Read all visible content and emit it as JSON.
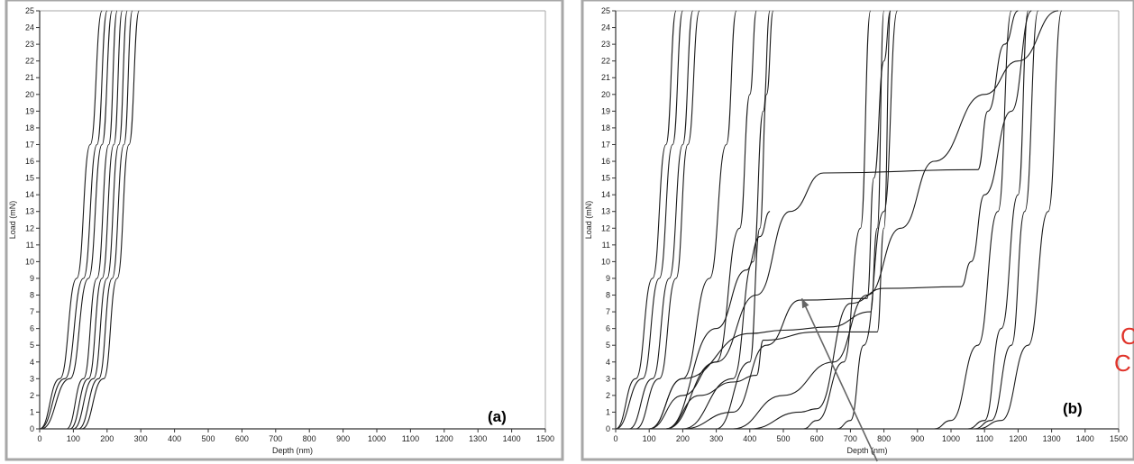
{
  "chart_data": [
    {
      "type": "line",
      "panel_label": "(a)",
      "xlabel": "Depth (nm)",
      "ylabel": "Load (mN)",
      "xlim": [
        0,
        1500
      ],
      "ylim": [
        0,
        25
      ],
      "x_ticks": [
        0,
        100,
        200,
        300,
        400,
        500,
        600,
        700,
        800,
        900,
        1000,
        1100,
        1200,
        1300,
        1400,
        1500
      ],
      "y_ticks": [
        0,
        1,
        2,
        3,
        4,
        5,
        6,
        7,
        8,
        9,
        10,
        11,
        12,
        13,
        14,
        15,
        16,
        17,
        18,
        19,
        20,
        21,
        22,
        23,
        24,
        25
      ],
      "grid": false,
      "legend": "none",
      "series": [
        {
          "x": [
            0,
            60,
            110,
            150,
            185
          ],
          "y": [
            0,
            3,
            9,
            17,
            25
          ]
        },
        {
          "x": [
            0,
            75,
            130,
            170,
            200
          ],
          "y": [
            0,
            3,
            9,
            17,
            25
          ]
        },
        {
          "x": [
            5,
            90,
            145,
            185,
            215
          ],
          "y": [
            0,
            3,
            9,
            17,
            25
          ]
        },
        {
          "x": [
            80,
            130,
            170,
            205,
            230
          ],
          "y": [
            0,
            3,
            9,
            17,
            25
          ]
        },
        {
          "x": [
            90,
            145,
            185,
            220,
            245
          ],
          "y": [
            0,
            3,
            9,
            17,
            25
          ]
        },
        {
          "x": [
            100,
            160,
            200,
            235,
            260
          ],
          "y": [
            0,
            3,
            9,
            17,
            25
          ]
        },
        {
          "x": [
            115,
            175,
            215,
            250,
            275
          ],
          "y": [
            0,
            3,
            9,
            17,
            25
          ]
        },
        {
          "x": [
            125,
            190,
            230,
            265,
            295
          ],
          "y": [
            0,
            3,
            9,
            17,
            25
          ]
        }
      ]
    },
    {
      "type": "line",
      "panel_label": "(b)",
      "xlabel": "Depth (nm)",
      "ylabel": "Load (mN)",
      "xlim": [
        0,
        1500
      ],
      "ylim": [
        0,
        25
      ],
      "x_ticks": [
        0,
        100,
        200,
        300,
        400,
        500,
        600,
        700,
        800,
        900,
        1000,
        1100,
        1200,
        1300,
        1400,
        1500
      ],
      "y_ticks": [
        0,
        1,
        2,
        3,
        4,
        5,
        6,
        7,
        8,
        9,
        10,
        11,
        12,
        13,
        14,
        15,
        16,
        17,
        18,
        19,
        20,
        21,
        22,
        23,
        24,
        25
      ],
      "grid": false,
      "legend": "none",
      "series": [
        {
          "x": [
            0,
            60,
            110,
            150,
            180
          ],
          "y": [
            0,
            3,
            9,
            17,
            25
          ]
        },
        {
          "x": [
            0,
            80,
            130,
            170,
            200
          ],
          "y": [
            0,
            3,
            9,
            17,
            25
          ]
        },
        {
          "x": [
            40,
            110,
            160,
            200,
            230
          ],
          "y": [
            0,
            3,
            9,
            17,
            25
          ]
        },
        {
          "x": [
            60,
            130,
            180,
            215,
            250
          ],
          "y": [
            0,
            3,
            9,
            17,
            25
          ]
        },
        {
          "x": [
            100,
            200,
            280,
            330,
            360
          ],
          "y": [
            0,
            3,
            9,
            17,
            25
          ]
        },
        {
          "x": [
            150,
            300,
            370,
            400,
            420
          ],
          "y": [
            0,
            4,
            12,
            20,
            25
          ]
        },
        {
          "x": [
            200,
            350,
            410,
            440,
            460
          ],
          "y": [
            0,
            3,
            10,
            19,
            25
          ]
        },
        {
          "x": [
            300,
            400,
            430,
            450,
            470
          ],
          "y": [
            0,
            4,
            12,
            20,
            25
          ]
        },
        {
          "x": [
            150,
            300,
            390,
            430,
            460
          ],
          "y": [
            0,
            6,
            9.5,
            11.5,
            13
          ]
        },
        {
          "x": [
            100,
            200,
            300,
            420,
            520,
            620,
            1080,
            1110,
            1160,
            1200
          ],
          "y": [
            0,
            2,
            4,
            8,
            13,
            15.3,
            15.5,
            19,
            23,
            25
          ]
        },
        {
          "x": [
            150,
            250,
            350,
            420,
            440,
            600,
            780,
            800,
            820
          ],
          "y": [
            0,
            2,
            2.8,
            3.2,
            5.3,
            5.8,
            5.8,
            12,
            25
          ]
        },
        {
          "x": [
            100,
            200,
            400,
            500,
            640,
            760,
            780,
            800
          ],
          "y": [
            0,
            3,
            5.7,
            5.9,
            6.1,
            7,
            12,
            25
          ]
        },
        {
          "x": [
            200,
            350,
            450,
            550,
            750,
            770,
            800,
            820
          ],
          "y": [
            0,
            1,
            5,
            7.7,
            7.8,
            15,
            22,
            25
          ]
        },
        {
          "x": [
            400,
            550,
            600,
            700,
            800,
            1030,
            1060,
            1100,
            1180,
            1240
          ],
          "y": [
            0,
            1,
            1.2,
            7.5,
            8.4,
            8.5,
            10,
            14,
            19,
            25
          ]
        },
        {
          "x": [
            350,
            500,
            650,
            750,
            850,
            950,
            1100,
            1200,
            1320
          ],
          "y": [
            0,
            2,
            4,
            8,
            12,
            16,
            20,
            22,
            25
          ]
        },
        {
          "x": [
            560,
            600,
            680,
            730,
            760
          ],
          "y": [
            0,
            0.5,
            4,
            12,
            25
          ]
        },
        {
          "x": [
            660,
            700,
            740,
            800,
            840
          ],
          "y": [
            0,
            0.5,
            5,
            13,
            25
          ]
        },
        {
          "x": [
            950,
            1000,
            1080,
            1140,
            1180
          ],
          "y": [
            0,
            0.5,
            5,
            13,
            25
          ]
        },
        {
          "x": [
            1050,
            1100,
            1150,
            1200,
            1230
          ],
          "y": [
            0,
            0.5,
            6,
            14,
            25
          ]
        },
        {
          "x": [
            1070,
            1120,
            1180,
            1220,
            1260
          ],
          "y": [
            0,
            0.5,
            5,
            13,
            25
          ]
        },
        {
          "x": [
            1080,
            1150,
            1230,
            1290,
            1330
          ],
          "y": [
            0,
            0.5,
            5,
            13,
            25
          ]
        }
      ],
      "annotations": [
        {
          "type": "arrow",
          "from": [
            780,
            -2
          ],
          "to": [
            555,
            7.8
          ]
        }
      ]
    }
  ],
  "side_text": [
    "C",
    "C"
  ],
  "colors": {
    "curve": "#1a1a1a",
    "axis": "#333333",
    "frame": "#a7a7a7",
    "side_text": "#e0342b",
    "arrow": "#666666"
  }
}
